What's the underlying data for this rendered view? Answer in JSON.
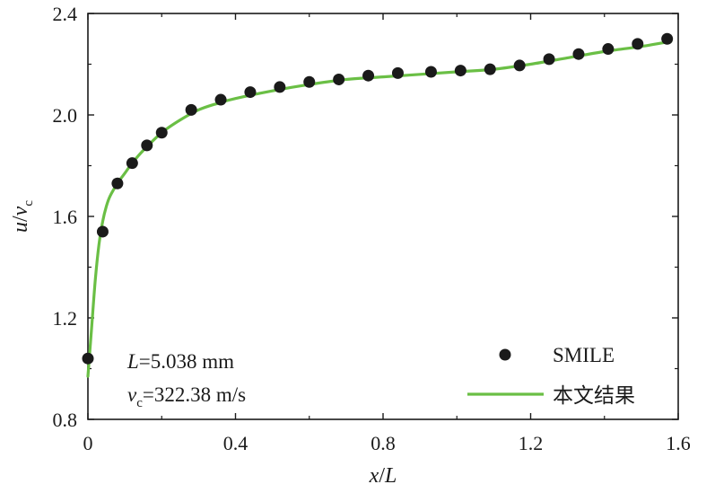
{
  "chart_data": {
    "type": "scatter",
    "xlabel": {
      "var": "x",
      "sep": "/",
      "ref": "L"
    },
    "ylabel": {
      "var": "u",
      "sep": "/",
      "ref": "v",
      "sub": "c"
    },
    "xlim": [
      0,
      1.6
    ],
    "ylim": [
      0.8,
      2.4
    ],
    "xticks": [
      0,
      0.4,
      0.8,
      1.2,
      1.6
    ],
    "xtick_labels": [
      "0",
      "0.4",
      "0.8",
      "1.2",
      "1.6"
    ],
    "yticks": [
      0.8,
      1.2,
      1.6,
      2.0,
      2.4
    ],
    "ytick_labels": [
      "0.8",
      "1.2",
      "1.6",
      "2.0",
      "2.4"
    ],
    "grid": false,
    "legend_position": "bottom-right",
    "annotations": {
      "length_var": "L",
      "length_value": "=5.038 mm",
      "vel_var": "v",
      "vel_sub": "c",
      "vel_value": "=322.38 m/s"
    },
    "series": [
      {
        "name": "SMILE",
        "kind": "scatter",
        "color": "#1a1a1a",
        "x": [
          0.0,
          0.04,
          0.08,
          0.12,
          0.16,
          0.2,
          0.28,
          0.36,
          0.44,
          0.52,
          0.6,
          0.68,
          0.76,
          0.84,
          0.93,
          1.01,
          1.09,
          1.17,
          1.25,
          1.33,
          1.41,
          1.49,
          1.57
        ],
        "y": [
          1.04,
          1.54,
          1.73,
          1.81,
          1.88,
          1.93,
          2.02,
          2.06,
          2.09,
          2.11,
          2.13,
          2.14,
          2.155,
          2.165,
          2.17,
          2.175,
          2.18,
          2.195,
          2.22,
          2.24,
          2.26,
          2.28,
          2.3
        ]
      },
      {
        "name": "本文结果",
        "kind": "line",
        "color": "#6abf45",
        "x": [
          0.0,
          0.01,
          0.02,
          0.03,
          0.04,
          0.05,
          0.06,
          0.08,
          0.1,
          0.12,
          0.15,
          0.2,
          0.25,
          0.3,
          0.35,
          0.4,
          0.5,
          0.6,
          0.7,
          0.8,
          0.9,
          1.0,
          1.1,
          1.2,
          1.3,
          1.4,
          1.5,
          1.58
        ],
        "y": [
          0.97,
          1.16,
          1.35,
          1.49,
          1.58,
          1.64,
          1.68,
          1.73,
          1.77,
          1.81,
          1.86,
          1.93,
          1.98,
          2.02,
          2.045,
          2.065,
          2.095,
          2.12,
          2.14,
          2.15,
          2.16,
          2.17,
          2.18,
          2.2,
          2.225,
          2.25,
          2.27,
          2.29
        ]
      }
    ]
  }
}
